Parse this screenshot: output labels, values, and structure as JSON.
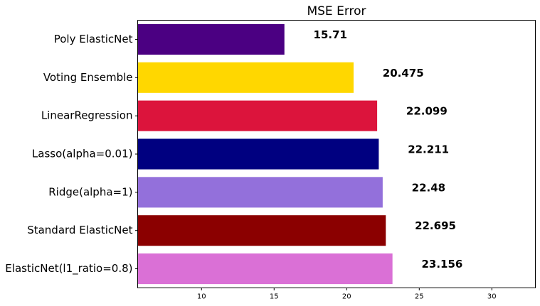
{
  "chart_data": {
    "type": "bar",
    "orientation": "horizontal",
    "title": "MSE Error",
    "xlabel": "",
    "ylabel": "",
    "categories": [
      "Poly ElasticNet",
      "Voting Ensemble",
      "LinearRegression",
      "Lasso(alpha=0.01)",
      "Ridge(alpha=1)",
      "Standard ElasticNet",
      "ElasticNet(l1_ratio=0.8)"
    ],
    "values": [
      15.71,
      20.475,
      22.099,
      22.211,
      22.48,
      22.695,
      23.156
    ],
    "data_labels": [
      "15.71",
      "20.475",
      "22.099",
      "22.211",
      "22.48",
      "22.695",
      "23.156"
    ],
    "colors": [
      "#4b0082",
      "#ffd700",
      "#dc143c",
      "#000080",
      "#9370db",
      "#8b0000",
      "#da70d6"
    ],
    "xlim": [
      5.6,
      33.0
    ],
    "xticks": [
      10,
      15,
      20,
      25,
      30
    ],
    "xtick_labels": [
      "10",
      "15",
      "20",
      "25",
      "30"
    ],
    "grid": false,
    "legend": "none"
  }
}
